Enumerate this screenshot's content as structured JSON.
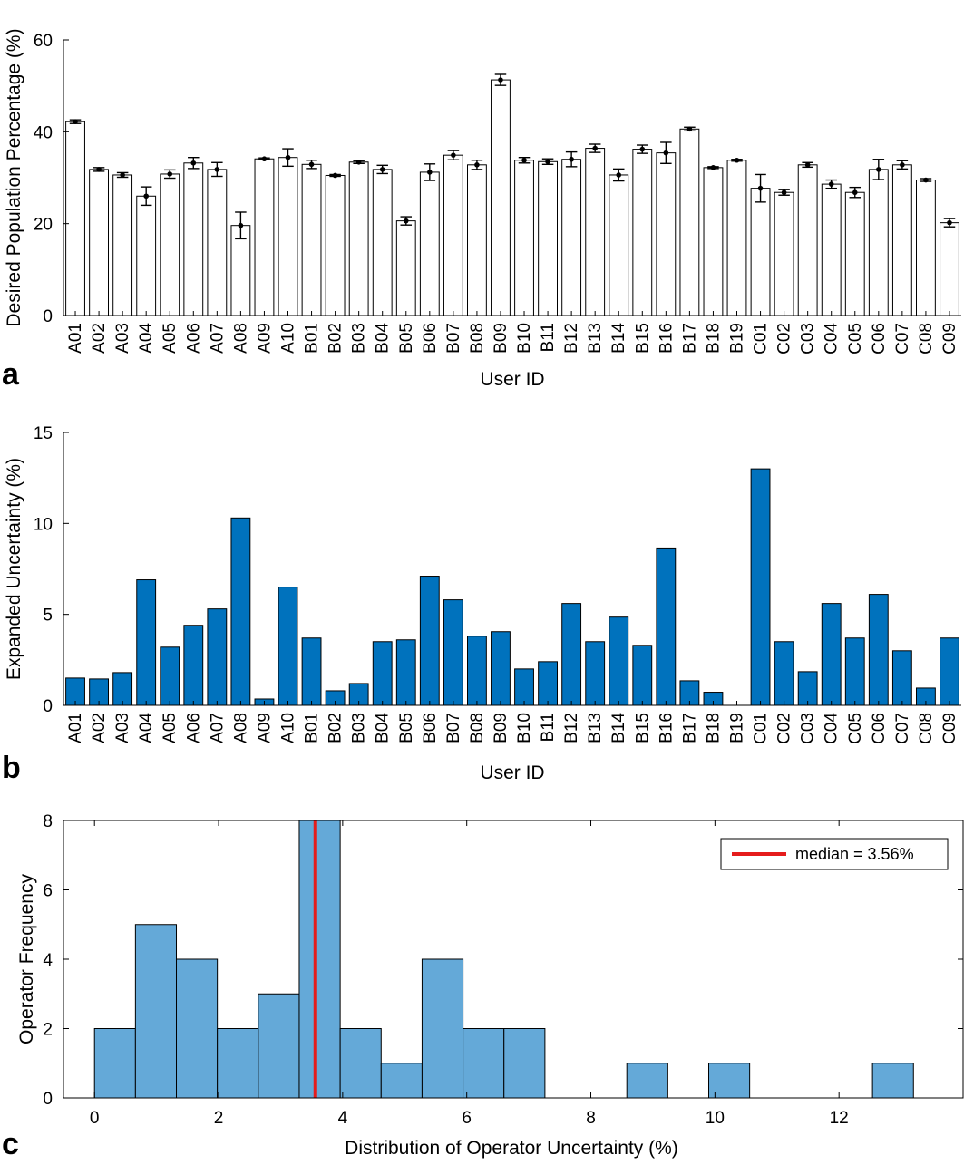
{
  "chart_data": [
    {
      "panel": "a",
      "type": "bar",
      "xlabel": "User ID",
      "ylabel": "Desired Population Percentage (%)",
      "ylim": [
        0,
        60
      ],
      "yticks": [
        0,
        20,
        40,
        60
      ],
      "categories": [
        "A01",
        "A02",
        "A03",
        "A04",
        "A05",
        "A06",
        "A07",
        "A08",
        "A09",
        "A10",
        "B01",
        "B02",
        "B03",
        "B04",
        "B05",
        "B06",
        "B07",
        "B08",
        "B09",
        "B10",
        "B11",
        "B12",
        "B13",
        "B14",
        "B15",
        "B16",
        "B17",
        "B18",
        "B19",
        "C01",
        "C02",
        "C03",
        "C04",
        "C05",
        "C06",
        "C07",
        "C08",
        "C09"
      ],
      "values": [
        42.2,
        31.8,
        30.6,
        26.0,
        30.8,
        33.2,
        31.8,
        19.6,
        34.1,
        34.4,
        32.9,
        30.5,
        33.4,
        31.8,
        20.6,
        31.2,
        34.9,
        32.8,
        51.3,
        33.8,
        33.5,
        34.0,
        36.4,
        30.6,
        36.2,
        35.4,
        40.6,
        32.2,
        33.8,
        27.7,
        26.8,
        32.8,
        28.6,
        26.8,
        31.8,
        32.8,
        29.5,
        20.2
      ],
      "errors": [
        0.4,
        0.4,
        0.5,
        2.0,
        0.9,
        1.2,
        1.5,
        2.9,
        0.2,
        1.9,
        0.9,
        0.2,
        0.3,
        0.9,
        0.9,
        1.8,
        1.0,
        1.0,
        1.2,
        0.6,
        0.6,
        1.6,
        0.9,
        1.3,
        0.9,
        2.3,
        0.4,
        0.2,
        0.2,
        3.0,
        0.6,
        0.5,
        0.9,
        1.1,
        2.2,
        0.9,
        0.3,
        0.9
      ],
      "grid": false,
      "bar_color": "#ffffff",
      "edge_color": "#000000"
    },
    {
      "panel": "b",
      "type": "bar",
      "xlabel": "User ID",
      "ylabel": "Expanded Uncertainty (%)",
      "ylim": [
        0,
        15
      ],
      "yticks": [
        0,
        5,
        10,
        15
      ],
      "categories": [
        "A01",
        "A02",
        "A03",
        "A04",
        "A05",
        "A06",
        "A07",
        "A08",
        "A09",
        "A10",
        "B01",
        "B02",
        "B03",
        "B04",
        "B05",
        "B06",
        "B07",
        "B08",
        "B09",
        "B10",
        "B11",
        "B12",
        "B13",
        "B14",
        "B15",
        "B16",
        "B17",
        "B18",
        "B19",
        "C01",
        "C02",
        "C03",
        "C04",
        "C05",
        "C06",
        "C07",
        "C08",
        "C09"
      ],
      "values": [
        1.5,
        1.45,
        1.8,
        6.9,
        3.2,
        4.4,
        5.3,
        10.3,
        0.35,
        6.5,
        3.7,
        0.8,
        1.2,
        3.5,
        3.6,
        7.1,
        5.8,
        3.8,
        4.05,
        2.0,
        2.4,
        5.6,
        3.5,
        4.85,
        3.3,
        8.65,
        1.35,
        0.72,
        0.0,
        13.0,
        3.5,
        1.85,
        5.6,
        3.7,
        6.1,
        3.0,
        0.95,
        3.7
      ],
      "grid": false,
      "bar_color": "#0072bd",
      "edge_color": "#000000"
    },
    {
      "panel": "c",
      "type": "histogram",
      "xlabel": "Distribution of Operator Uncertainty (%)",
      "ylabel": "Operator Frequency",
      "xlim": [
        -0.5,
        14.0
      ],
      "ylim": [
        0,
        8
      ],
      "xticks": [
        0,
        2,
        4,
        6,
        8,
        10,
        12
      ],
      "yticks": [
        0,
        2,
        4,
        6,
        8
      ],
      "bin_edges": [
        0.0,
        0.66,
        1.32,
        1.98,
        2.64,
        3.3,
        3.96,
        4.62,
        5.28,
        5.94,
        6.6,
        7.26,
        7.92,
        8.58,
        9.24,
        9.9,
        10.56,
        11.22,
        11.88,
        12.54,
        13.2
      ],
      "counts": [
        2,
        5,
        4,
        2,
        3,
        8,
        2,
        1,
        4,
        2,
        2,
        0,
        0,
        1,
        0,
        1,
        0,
        0,
        0,
        1
      ],
      "median": 3.56,
      "legend": {
        "label": "median = 3.56%",
        "position": "top-right"
      },
      "grid": false,
      "bar_color": "#64a9d8",
      "median_color": "#e51c1c"
    }
  ],
  "panel_labels": [
    "a",
    "b",
    "c"
  ]
}
